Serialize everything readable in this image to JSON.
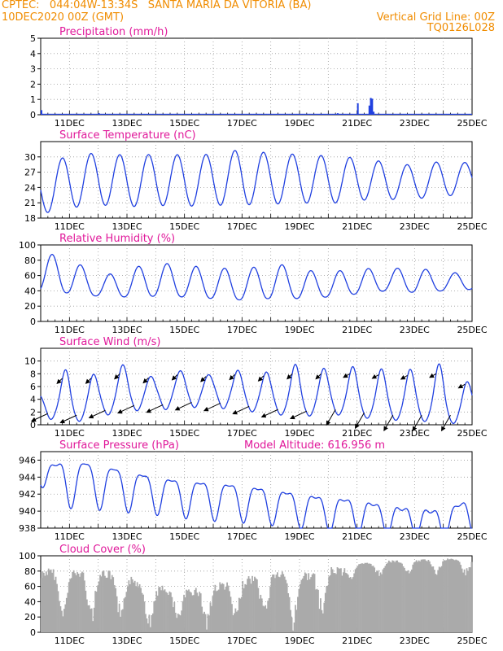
{
  "header": {
    "line1": "CPTEC:   044:04W-13:34S   SANTA MARIA DA VITORIA (BA)",
    "line2": "10DEC2020 00Z (GMT)",
    "grid_note": "Vertical Grid Line: 00Z",
    "code": "TQ0126L028"
  },
  "colors": {
    "line": "#2040e0",
    "bar": "#2040e0",
    "cloud": "#aaaaaa",
    "title": "#e0189a",
    "header": "#f08c00",
    "arrow": "#000000"
  },
  "x_labels": [
    "11DEC",
    "13DEC",
    "15DEC",
    "17DEC",
    "19DEC",
    "21DEC",
    "23DEC",
    "25DEC"
  ],
  "chart_data": [
    {
      "id": "precip",
      "type": "bar",
      "title": "Precipitation (mm/h)",
      "ylim": [
        0,
        5
      ],
      "yticks": [
        "0",
        "1",
        "2",
        "3",
        "4",
        "5"
      ],
      "x": [
        0.0,
        2.0,
        10.2,
        10.3,
        11.0,
        11.4,
        11.45,
        11.5,
        11.55,
        12.0
      ],
      "values": [
        0.3,
        0.1,
        0.05,
        0.1,
        0.75,
        0.6,
        1.1,
        1.05,
        0.2,
        0.05
      ]
    },
    {
      "id": "temp",
      "type": "line",
      "title": "Surface Temperature (nC)",
      "ylim": [
        18,
        33
      ],
      "yticks": [
        "18",
        "21",
        "24",
        "27",
        "30"
      ],
      "daily": [
        {
          "min": 18.8,
          "max": 28.2
        },
        {
          "min": 20.0,
          "max": 30.3
        },
        {
          "min": 20.6,
          "max": 30.8
        },
        {
          "min": 20.2,
          "max": 30.3
        },
        {
          "min": 20.5,
          "max": 30.5
        },
        {
          "min": 20.3,
          "max": 30.4
        },
        {
          "min": 20.5,
          "max": 30.5
        },
        {
          "min": 20.6,
          "max": 31.5
        },
        {
          "min": 20.7,
          "max": 30.7
        },
        {
          "min": 21.0,
          "max": 30.5
        },
        {
          "min": 20.8,
          "max": 30.2
        },
        {
          "min": 21.5,
          "max": 29.8
        },
        {
          "min": 21.6,
          "max": 29.0
        },
        {
          "min": 21.8,
          "max": 28.3
        },
        {
          "min": 22.2,
          "max": 29.2
        },
        {
          "min": 23.0,
          "max": 28.8
        }
      ]
    },
    {
      "id": "rh",
      "type": "line",
      "title": "Relative Humidity (%)",
      "ylim": [
        0,
        100
      ],
      "yticks": [
        "0",
        "20",
        "40",
        "60",
        "80",
        "100"
      ],
      "daily": [
        {
          "min": 40,
          "max": 90
        },
        {
          "min": 37,
          "max": 84
        },
        {
          "min": 33,
          "max": 58
        },
        {
          "min": 32,
          "max": 68
        },
        {
          "min": 33,
          "max": 78
        },
        {
          "min": 32,
          "max": 72
        },
        {
          "min": 30,
          "max": 72
        },
        {
          "min": 28,
          "max": 66
        },
        {
          "min": 30,
          "max": 78
        },
        {
          "min": 30,
          "max": 68
        },
        {
          "min": 32,
          "max": 64
        },
        {
          "min": 36,
          "max": 70
        },
        {
          "min": 40,
          "max": 68
        },
        {
          "min": 38,
          "max": 72
        },
        {
          "min": 40,
          "max": 62
        },
        {
          "min": 42,
          "max": 66
        }
      ]
    },
    {
      "id": "wind",
      "type": "line",
      "title": "Surface Wind (m/s)",
      "ylim": [
        0,
        12
      ],
      "yticks": [
        "0",
        "2",
        "4",
        "6",
        "8",
        "10"
      ],
      "daily": [
        {
          "min": 2,
          "max": 6
        },
        {
          "min": 1,
          "max": 10
        },
        {
          "min": 2,
          "max": 8.5
        },
        {
          "min": 3,
          "max": 10.5
        },
        {
          "min": 3,
          "max": 8
        },
        {
          "min": 3.5,
          "max": 9.5
        },
        {
          "min": 3.5,
          "max": 8.5
        },
        {
          "min": 3,
          "max": 9.5
        },
        {
          "min": 2.5,
          "max": 9
        },
        {
          "min": 2,
          "max": 10.5
        },
        {
          "min": 2.5,
          "max": 9.5
        },
        {
          "min": 2,
          "max": 10
        },
        {
          "min": 1.5,
          "max": 9.5
        },
        {
          "min": 1.5,
          "max": 9.5
        },
        {
          "min": 1,
          "max": 10.5
        },
        {
          "min": 1,
          "max": 7
        }
      ]
    },
    {
      "id": "pressure",
      "type": "line",
      "title": "Surface Pressure (hPa)",
      "subtitle": "Model Altitude: 616.956 m",
      "ylim": [
        938,
        947
      ],
      "yticks": [
        "938",
        "940",
        "942",
        "944",
        "946"
      ],
      "daily": [
        {
          "min": 943.6,
          "max": 945.5
        },
        {
          "min": 941.0,
          "max": 946.5
        },
        {
          "min": 940.8,
          "max": 946.0
        },
        {
          "min": 940.5,
          "max": 945.2
        },
        {
          "min": 940.2,
          "max": 944.5
        },
        {
          "min": 939.8,
          "max": 944.0
        },
        {
          "min": 939.5,
          "max": 943.8
        },
        {
          "min": 939.3,
          "max": 943.5
        },
        {
          "min": 939.0,
          "max": 943.0
        },
        {
          "min": 938.6,
          "max": 942.5
        },
        {
          "min": 938.2,
          "max": 942.0
        },
        {
          "min": 938.0,
          "max": 941.8
        },
        {
          "min": 937.8,
          "max": 941.0
        },
        {
          "min": 937.6,
          "max": 940.6
        },
        {
          "min": 937.4,
          "max": 940.4
        },
        {
          "min": 938.0,
          "max": 942.0
        }
      ]
    },
    {
      "id": "cloud",
      "type": "bar",
      "title": "Cloud Cover (%)",
      "ylim": [
        0,
        100
      ],
      "yticks": [
        "0",
        "20",
        "40",
        "60",
        "80",
        "100"
      ],
      "daily_level": [
        85,
        82,
        84,
        75,
        62,
        58,
        65,
        72,
        82,
        78,
        86,
        90,
        94,
        95,
        97,
        96
      ]
    }
  ]
}
